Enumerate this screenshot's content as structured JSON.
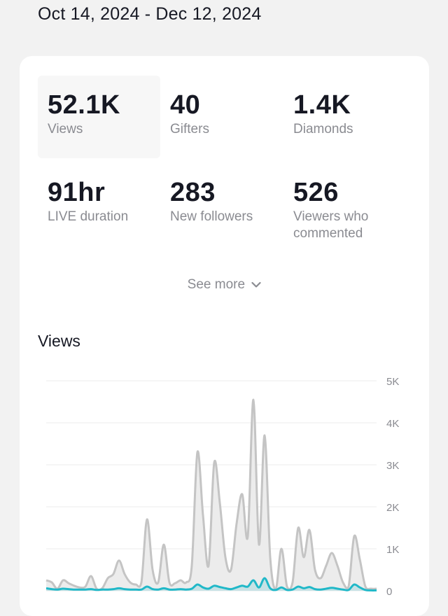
{
  "header": {
    "date_range": "Oct 14, 2024 - Dec 12, 2024"
  },
  "metrics": [
    {
      "value": "52.1K",
      "label": "Views",
      "selected": true
    },
    {
      "value": "40",
      "label": "Gifters"
    },
    {
      "value": "1.4K",
      "label": "Diamonds"
    },
    {
      "value": "91hr",
      "label": "LIVE duration"
    },
    {
      "value": "283",
      "label": "New followers"
    },
    {
      "value": "526",
      "label": "Viewers who commented"
    }
  ],
  "see_more": {
    "label": "See more",
    "icon": "chevron-down-icon"
  },
  "chart_title": "Views",
  "chart_data": {
    "type": "area",
    "ylim": [
      0,
      5000
    ],
    "y_ticks": [
      "0",
      "1K",
      "2K",
      "3K",
      "4K",
      "5K"
    ],
    "grid": true,
    "series": [
      {
        "color": "#c4c4c4",
        "values": [
          250,
          200,
          50,
          250,
          180,
          120,
          80,
          100,
          350,
          50,
          60,
          300,
          400,
          720,
          400,
          200,
          150,
          200,
          1700,
          500,
          200,
          1100,
          200,
          180,
          250,
          200,
          600,
          3300,
          1800,
          600,
          3050,
          2100,
          800,
          500,
          1600,
          2300,
          1300,
          4550,
          1100,
          3700,
          800,
          50,
          1000,
          100,
          200,
          1500,
          800,
          1450,
          500,
          300,
          600,
          900,
          600,
          200,
          100,
          1300,
          750,
          100,
          50,
          50
        ],
        "fill": "#ececec"
      },
      {
        "color": "#20b8c8",
        "values": [
          60,
          40,
          30,
          50,
          40,
          30,
          30,
          30,
          40,
          20,
          30,
          30,
          40,
          60,
          40,
          30,
          30,
          30,
          100,
          40,
          30,
          60,
          30,
          30,
          40,
          30,
          50,
          150,
          80,
          50,
          120,
          90,
          60,
          40,
          80,
          120,
          100,
          250,
          80,
          300,
          60,
          20,
          80,
          20,
          30,
          100,
          60,
          90,
          40,
          30,
          50,
          70,
          50,
          30,
          20,
          150,
          80,
          20,
          10,
          10
        ],
        "fill": "rgba(32,184,200,0.18)"
      }
    ]
  }
}
